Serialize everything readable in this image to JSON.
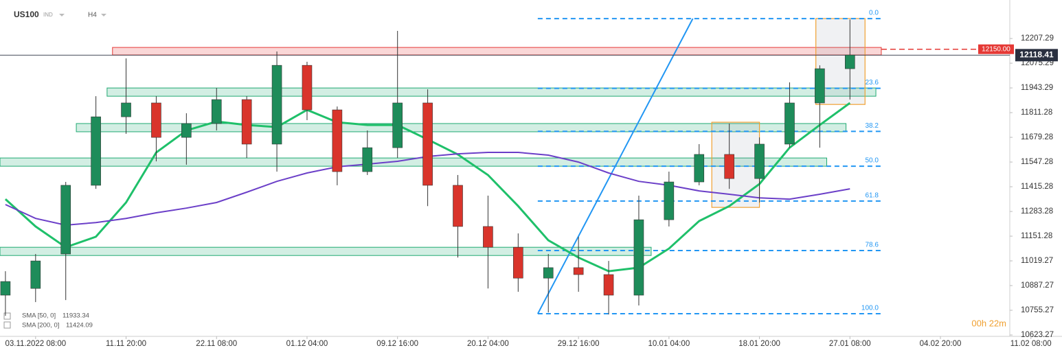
{
  "chart_data": {
    "type": "candlestick",
    "symbol": "US100",
    "market": "IND",
    "timeframe": "H4",
    "x": [
      -1,
      0,
      1,
      2,
      3,
      4,
      5,
      6,
      7,
      8,
      9,
      10,
      11,
      12,
      13,
      14,
      15,
      16,
      17,
      18,
      19,
      20,
      21,
      22,
      23,
      24,
      25,
      26,
      27
    ],
    "candles": {
      "open": [
        10836,
        10872,
        11056,
        11423,
        11789,
        11863,
        11679,
        11753,
        11881,
        11643,
        12064,
        11826,
        11496,
        11624,
        11863,
        11423,
        11203,
        11092,
        10927,
        10983,
        10946,
        10836,
        11239,
        11441,
        11588,
        11459,
        11643,
        11863,
        12046
      ],
      "high": [
        10964,
        11056,
        11441,
        11899,
        12101,
        11899,
        11808,
        11943,
        11899,
        12138,
        12083,
        11844,
        11716,
        12248,
        11936,
        11478,
        11368,
        11166,
        11056,
        11148,
        11019,
        11368,
        11496,
        11643,
        11753,
        11679,
        11973,
        12064,
        12309
      ],
      "low": [
        10726,
        10799,
        10810,
        11404,
        11698,
        11551,
        11533,
        11716,
        11569,
        11496,
        11771,
        11423,
        11478,
        11569,
        11312,
        11037,
        10872,
        10854,
        10744,
        10854,
        10733,
        10781,
        11203,
        11423,
        11404,
        11331,
        11624,
        11624,
        11881
      ],
      "close": [
        10909,
        11019,
        11423,
        11789,
        11863,
        11679,
        11753,
        11881,
        11643,
        12064,
        11826,
        11496,
        11624,
        11863,
        11423,
        11203,
        11092,
        10927,
        10983,
        10946,
        10836,
        11239,
        11441,
        11588,
        11459,
        11643,
        11863,
        12046,
        12119
      ],
      "up_color": "#1e8c5a",
      "down_color": "#d9342b"
    },
    "series": [
      {
        "name": "SMA [50, 0]",
        "value": 11933.34,
        "color": "#1fc06a",
        "values": [
          11349,
          11203,
          11092,
          11148,
          11331,
          11598,
          11716,
          11764,
          11745,
          11734,
          11826,
          11760,
          11745,
          11745,
          11668,
          11588,
          11478,
          11312,
          11129,
          11037,
          10964,
          10983,
          11085,
          11232,
          11312,
          11430,
          11624,
          11745,
          11863
        ]
      },
      {
        "name": "SMA [200, 0]",
        "value": 11424.09,
        "color": "#6b3fc8",
        "values": [
          11320,
          11246,
          11210,
          11224,
          11246,
          11276,
          11301,
          11331,
          11386,
          11444,
          11489,
          11522,
          11536,
          11551,
          11577,
          11591,
          11599,
          11599,
          11584,
          11547,
          11489,
          11444,
          11423,
          11393,
          11375,
          11356,
          11349,
          11375,
          11404
        ]
      }
    ],
    "zones": [
      {
        "low": 12119.2,
        "high": 12159.6,
        "x": [
          2.55,
          28.04
        ],
        "color": "#e53935"
      },
      {
        "low": 11899,
        "high": 11943,
        "x": [
          2.37,
          27.86
        ],
        "color": "#1fa971"
      },
      {
        "low": 11709,
        "high": 11753,
        "x": [
          1.35,
          26.87
        ],
        "color": "#1fa971"
      },
      {
        "low": 11525,
        "high": 11569,
        "x": [
          -1.18,
          26.23
        ],
        "color": "#1fa971"
      },
      {
        "low": 11048,
        "high": 11092,
        "x": [
          -1.18,
          20.41
        ],
        "color": "#1fa971"
      }
    ],
    "boxes": [
      {
        "low": 11305,
        "high": 11760,
        "x": [
          22.42,
          24.0
        ],
        "color": "#f0a030"
      },
      {
        "low": 11855,
        "high": 12314,
        "x": [
          25.87,
          27.5
        ],
        "color": "#f0a030"
      }
    ],
    "fibonacci": {
      "high": 12313.6,
      "low": 10736.8,
      "x": [
        16.65,
        28.04
      ],
      "color": "#2196f3",
      "levels": [
        {
          "value": 0,
          "label": "0.0"
        },
        23.6,
        38.2,
        {
          "value": 50,
          "label": "50.0"
        },
        61.8,
        78.6,
        {
          "value": 100,
          "label": "100.0"
        }
      ]
    },
    "trendline": {
      "x": [
        16.65,
        21.79
      ],
      "values": [
        10736.8,
        12313.6
      ],
      "color": "#2196f3"
    },
    "alert_level": {
      "value": 12150,
      "label": "12150.00",
      "color": "#e53935"
    },
    "last_price": 12118.41,
    "timer": "00h 22m",
    "xlim": [
      -1.18,
      32.3
    ],
    "ylim": [
      10616,
      12413
    ],
    "xticks": [
      {
        "value": 0,
        "label": "03.11.2022 08:00"
      },
      {
        "value": 3,
        "label": "11.11 20:00"
      },
      {
        "value": 6,
        "label": "22.11 08:00"
      },
      {
        "value": 9,
        "label": "01.12 04:00"
      },
      {
        "value": 12,
        "label": "09.12 16:00"
      },
      {
        "value": 15,
        "label": "20.12 04:00"
      },
      {
        "value": 18,
        "label": "29.12 16:00"
      },
      {
        "value": 21,
        "label": "10.01 04:00"
      },
      {
        "value": 24,
        "label": "18.01 20:00"
      },
      {
        "value": 27,
        "label": "27.01 08:00"
      },
      {
        "value": 30,
        "label": "04.02 20:00"
      },
      {
        "value": 33,
        "label": "11.02 08:00"
      }
    ],
    "yticks": [
      12207.29,
      12075.29,
      11943.29,
      11811.28,
      11679.28,
      11547.28,
      11415.28,
      11283.28,
      11151.28,
      11019.27,
      10887.27,
      10755.27,
      10623.27
    ]
  }
}
